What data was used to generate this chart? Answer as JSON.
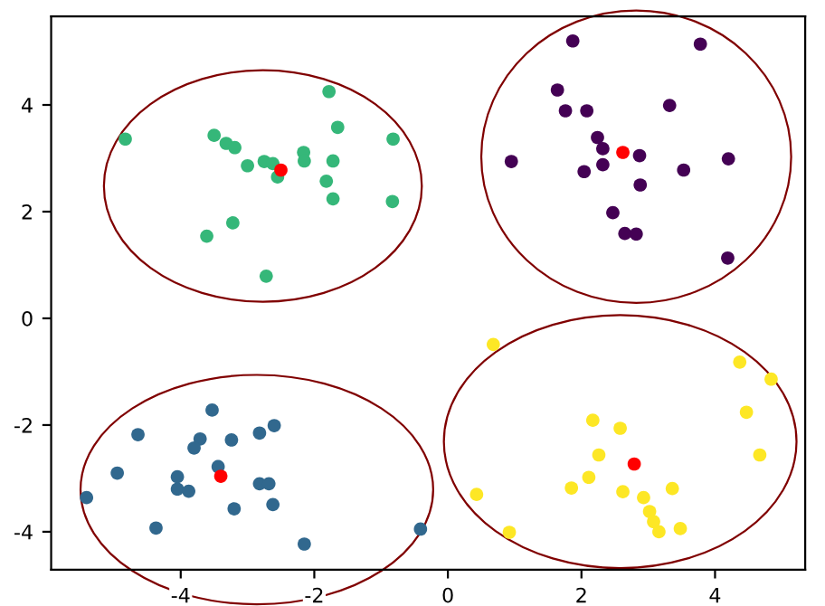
{
  "chart_data": {
    "type": "scatter",
    "marker": "circle",
    "grid": false,
    "xlim": [
      -5.94,
      5.35
    ],
    "ylim": [
      -4.71,
      5.66
    ],
    "xticks": [
      -4,
      -2,
      0,
      2,
      4
    ],
    "yticks": [
      -4,
      -2,
      0,
      2,
      4
    ],
    "series": [
      {
        "color": "#35b779",
        "x": [
          -4.83,
          -3.5,
          -3.32,
          -3.19,
          -3.0,
          -2.75,
          -2.62,
          -2.55,
          -2.16,
          -2.15,
          -1.78,
          -1.65,
          -1.72,
          -1.82,
          -1.72,
          -0.82,
          -0.83,
          -3.22,
          -3.61,
          -2.72
        ],
        "values": [
          3.36,
          3.43,
          3.28,
          3.2,
          2.86,
          2.94,
          2.9,
          2.65,
          3.11,
          2.95,
          4.25,
          3.58,
          2.95,
          2.57,
          2.24,
          3.36,
          2.19,
          1.79,
          1.54,
          0.79
        ]
      },
      {
        "color": "#440154",
        "x": [
          1.87,
          3.78,
          1.64,
          1.76,
          2.08,
          3.32,
          2.24,
          2.32,
          2.87,
          0.95,
          2.04,
          2.32,
          3.53,
          4.2,
          2.88,
          2.47,
          2.65,
          2.82,
          4.19
        ],
        "values": [
          5.2,
          5.14,
          4.28,
          3.89,
          3.89,
          3.99,
          3.39,
          3.18,
          3.05,
          2.94,
          2.75,
          2.88,
          2.78,
          2.99,
          2.5,
          1.98,
          1.59,
          1.58,
          1.13
        ]
      },
      {
        "color": "#31688e",
        "x": [
          -3.53,
          -4.64,
          -3.71,
          -3.8,
          -3.24,
          -2.82,
          -2.6,
          -4.95,
          -3.44,
          -4.05,
          -4.05,
          -3.88,
          -2.82,
          -2.68,
          -3.2,
          -2.62,
          -5.41,
          -4.37,
          -2.15,
          -0.41
        ],
        "values": [
          -1.72,
          -2.18,
          -2.26,
          -2.43,
          -2.28,
          -2.15,
          -2.01,
          -2.9,
          -2.78,
          -2.97,
          -3.2,
          -3.24,
          -3.1,
          -3.1,
          -3.57,
          -3.49,
          -3.36,
          -3.93,
          -4.23,
          -3.95
        ]
      },
      {
        "color": "#fde725",
        "x": [
          0.68,
          4.37,
          4.84,
          4.47,
          4.67,
          2.17,
          2.58,
          2.26,
          2.11,
          1.85,
          2.62,
          2.93,
          3.36,
          3.02,
          3.08,
          3.16,
          3.48,
          0.43,
          0.92
        ],
        "values": [
          -0.49,
          -0.82,
          -1.14,
          -1.76,
          -2.56,
          -1.91,
          -2.06,
          -2.56,
          -2.98,
          -3.18,
          -3.25,
          -3.36,
          -3.19,
          -3.62,
          -3.81,
          -4.0,
          -3.94,
          -3.3,
          -4.01
        ]
      },
      {
        "color": "#ff0000",
        "x": [
          -2.5,
          2.62,
          -3.4,
          2.79
        ],
        "values": [
          2.78,
          3.11,
          -2.96,
          -2.73
        ]
      }
    ]
  }
}
